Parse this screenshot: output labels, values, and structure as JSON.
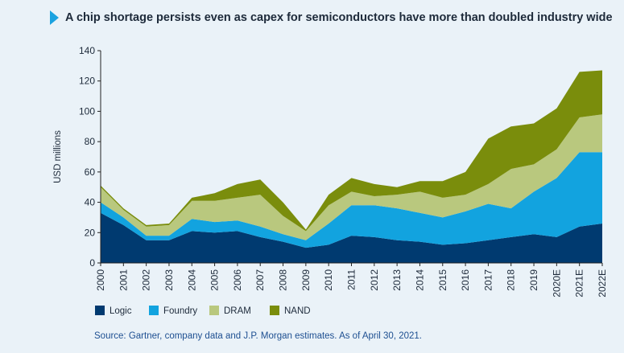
{
  "title": "A chip shortage persists even as capex for semiconductors have more than doubled industry wide",
  "source": "Source: Gartner, company data and J.P. Morgan estimates. As of April 30, 2021.",
  "colors": {
    "logic": "#003a70",
    "foundry": "#12a3df",
    "dram": "#b9c87e",
    "nand": "#7a8d0c",
    "accent": "#1aa2e0"
  },
  "chart_data": {
    "type": "area",
    "stacked": true,
    "ylabel": "USD millions",
    "xlabel": "",
    "ylim": [
      0,
      140
    ],
    "yticks": [
      0,
      20,
      40,
      60,
      80,
      100,
      120,
      140
    ],
    "grid": false,
    "legend_position": "bottom-left",
    "categories": [
      "2000",
      "2001",
      "2002",
      "2003",
      "2004",
      "2005",
      "2006",
      "2007",
      "2008",
      "2009",
      "2010",
      "2011",
      "2012",
      "2013",
      "2014",
      "2015",
      "2016",
      "2017",
      "2018",
      "2019",
      "2020E",
      "2021E",
      "2022E"
    ],
    "series": [
      {
        "name": "Logic",
        "values": [
          33,
          25,
          15,
          15,
          21,
          20,
          21,
          17,
          14,
          10,
          12,
          18,
          17,
          15,
          14,
          12,
          13,
          15,
          17,
          19,
          17,
          24,
          26
        ]
      },
      {
        "name": "Foundry",
        "values": [
          7,
          5,
          3,
          3,
          8,
          7,
          7,
          7,
          5,
          5,
          14,
          20,
          21,
          21,
          19,
          18,
          21,
          24,
          19,
          28,
          39,
          49,
          47
        ]
      },
      {
        "name": "DRAM",
        "values": [
          10,
          5,
          6,
          7,
          12,
          14,
          15,
          21,
          12,
          6,
          12,
          9,
          6,
          9,
          14,
          13,
          11,
          13,
          26,
          18,
          19,
          23,
          25
        ]
      },
      {
        "name": "NAND",
        "values": [
          1,
          1,
          1,
          1,
          2,
          5,
          9,
          10,
          9,
          1,
          7,
          9,
          8,
          5,
          7,
          11,
          15,
          30,
          28,
          27,
          27,
          30,
          29
        ]
      }
    ]
  }
}
